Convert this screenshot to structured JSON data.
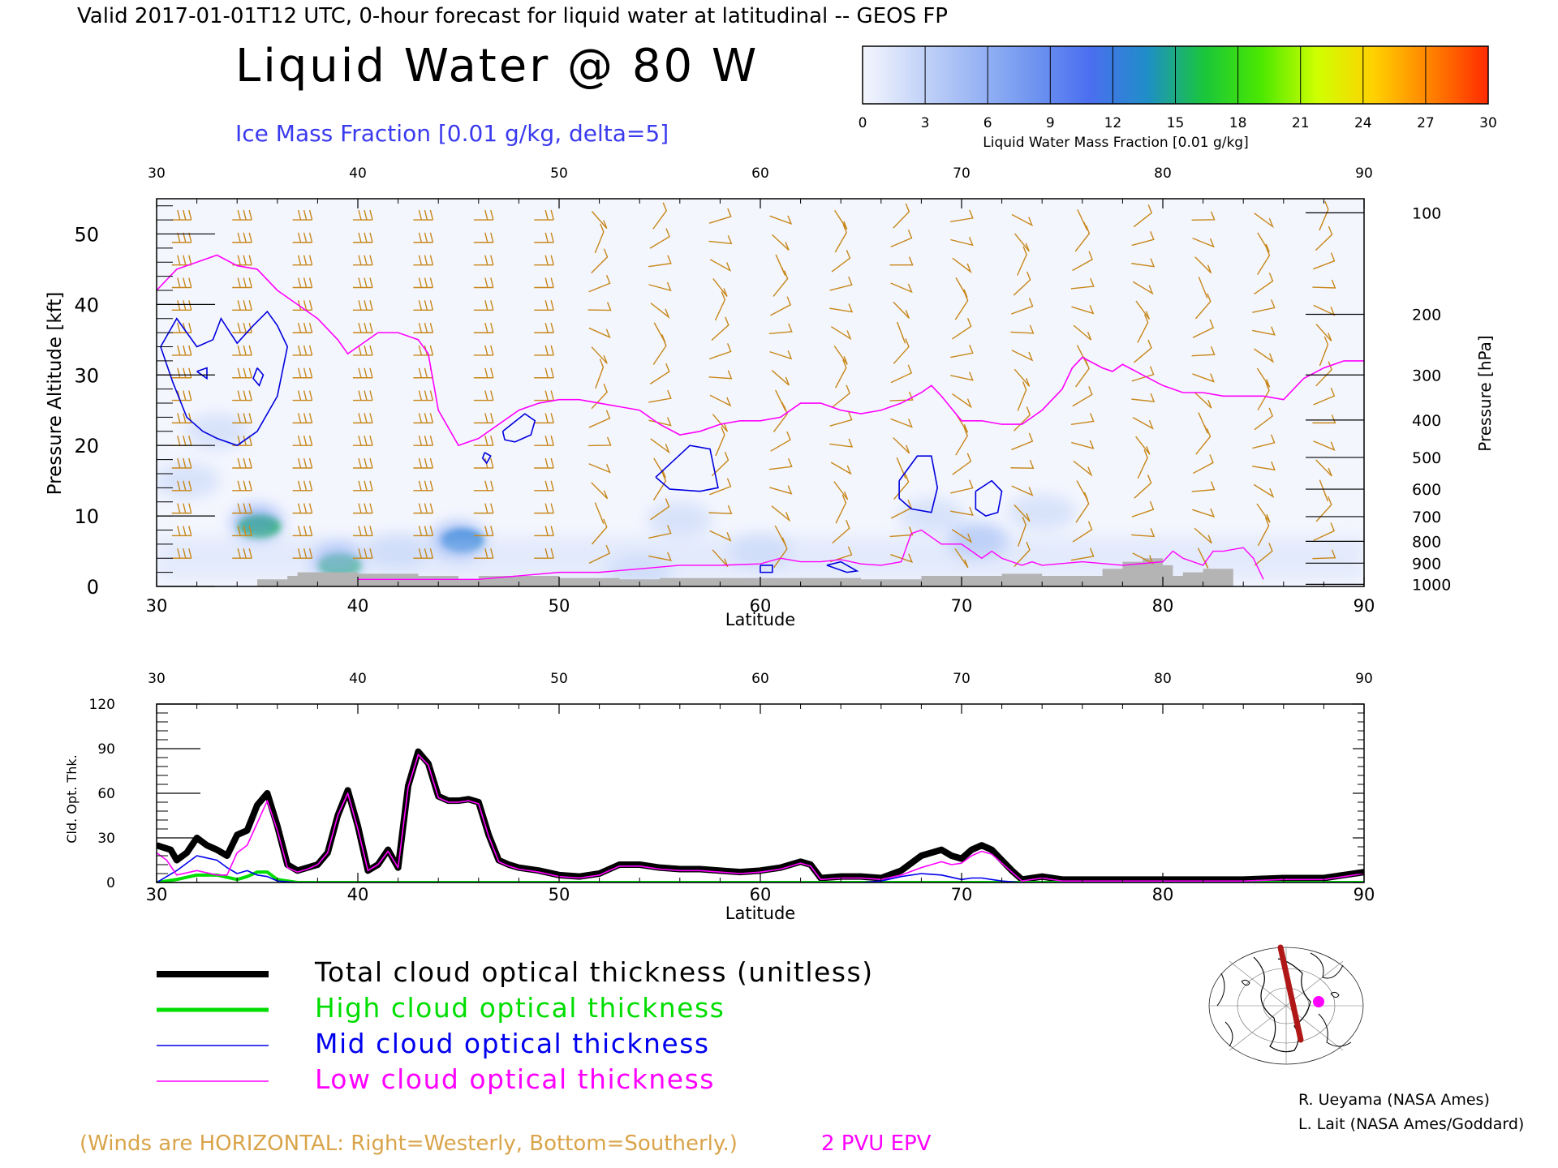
{
  "header": {
    "valid_line": "Valid 2017-01-01T12 UTC, 0-hour forecast for liquid water at latitudinal -- GEOS FP",
    "title": "Liquid Water @ 80 W",
    "subtitle": "Ice Mass Fraction [0.01 g/kg, delta=5]"
  },
  "colorbar": {
    "ticks": [
      "0",
      "3",
      "6",
      "9",
      "12",
      "15",
      "18",
      "21",
      "24",
      "27",
      "30"
    ],
    "label": "Liquid Water Mass Fraction [0.01 g/kg]",
    "colors": [
      "#f4f6fe",
      "#c5d5f8",
      "#99b5f4",
      "#6f95f0",
      "#4b6ef0",
      "#1f8ec8",
      "#19c63c",
      "#4ae800",
      "#d0ff00",
      "#ffd000",
      "#ff8000",
      "#ff2a00"
    ]
  },
  "colors": {
    "wind": "#c78719",
    "epv": "#ff00ff",
    "ice_contour": "#0000dd",
    "total": "#000000",
    "high": "#00dd00",
    "mid": "#0000ee",
    "low": "#ff00ff",
    "terrain": "#b4b4b4"
  },
  "chart_data": [
    {
      "type": "heatmap",
      "title": "Liquid Water @ 80 W",
      "xlabel": "Latitude",
      "ylabel": "Pressure Altitude [kft]",
      "ylabel_right": "Pressure [hPa]",
      "xlim": [
        30,
        90
      ],
      "ylim": [
        0,
        55
      ],
      "x_ticks": [
        "30",
        "40",
        "50",
        "60",
        "70",
        "80",
        "90"
      ],
      "y_ticks": [
        "0",
        "10",
        "20",
        "30",
        "40",
        "50"
      ],
      "pressure_ticks": [
        {
          "label": "100",
          "kft": 53.0
        },
        {
          "label": "200",
          "kft": 38.6
        },
        {
          "label": "300",
          "kft": 30.0
        },
        {
          "label": "400",
          "kft": 23.6
        },
        {
          "label": "500",
          "kft": 18.3
        },
        {
          "label": "600",
          "kft": 13.8
        },
        {
          "label": "700",
          "kft": 9.9
        },
        {
          "label": "800",
          "kft": 6.4
        },
        {
          "label": "900",
          "kft": 3.3
        },
        {
          "label": "1000",
          "kft": 0.3
        }
      ],
      "liquid_water_blobs": [
        {
          "lat": 35.1,
          "kft": 8.5,
          "level": 16
        },
        {
          "lat": 35.0,
          "kft": 9.0,
          "level": 9
        },
        {
          "lat": 39.1,
          "kft": 3.0,
          "level": 15
        },
        {
          "lat": 39.0,
          "kft": 3.5,
          "level": 9
        },
        {
          "lat": 45.2,
          "kft": 6.5,
          "level": 14
        },
        {
          "lat": 45.0,
          "kft": 6.5,
          "level": 8
        },
        {
          "lat": 42.0,
          "kft": 5.0,
          "level": 4
        },
        {
          "lat": 33.0,
          "kft": 22.0,
          "level": 4
        },
        {
          "lat": 31.5,
          "kft": 15.0,
          "level": 3
        },
        {
          "lat": 56.0,
          "kft": 9.5,
          "level": 3
        },
        {
          "lat": 60.0,
          "kft": 5.0,
          "level": 4
        },
        {
          "lat": 68.5,
          "kft": 10.0,
          "level": 3
        },
        {
          "lat": 70.8,
          "kft": 6.5,
          "level": 5
        },
        {
          "lat": 74.0,
          "kft": 10.5,
          "level": 2
        },
        {
          "lat": 54.0,
          "kft": 2.0,
          "level": 3
        }
      ],
      "ice_contours": [
        {
          "lat": [
            30.2,
            31.0,
            32.0,
            32.8,
            33.2,
            34.0,
            34.8,
            35.5,
            36.0,
            36.5,
            36.0,
            35.0,
            34.0,
            33.0,
            32.3,
            31.5,
            30.8,
            30.2
          ],
          "kft": [
            34.0,
            38.0,
            34.0,
            35.0,
            38.0,
            34.5,
            37.0,
            39.0,
            37.0,
            34.0,
            27.0,
            22.0,
            20.0,
            21.0,
            22.0,
            24.0,
            29.0,
            34.0
          ]
        },
        {
          "lat": [
            32.0,
            32.5,
            32.5,
            32.0
          ],
          "kft": [
            30.5,
            31.0,
            29.5,
            30.5
          ]
        },
        {
          "lat": [
            35.0,
            35.3,
            35.1,
            34.8,
            35.0
          ],
          "kft": [
            31.0,
            30.0,
            28.5,
            29.5,
            31.0
          ]
        },
        {
          "lat": [
            47.2,
            48.3,
            48.8,
            48.6,
            47.8,
            47.3,
            47.2
          ],
          "kft": [
            22.0,
            24.5,
            23.5,
            21.5,
            20.5,
            20.8,
            22.0
          ]
        },
        {
          "lat": [
            46.3,
            46.6,
            46.4,
            46.2,
            46.3
          ],
          "kft": [
            19.0,
            18.5,
            17.5,
            18.2,
            19.0
          ]
        },
        {
          "lat": [
            54.8,
            56.5,
            57.5,
            57.9,
            57.0,
            55.5,
            54.8
          ],
          "kft": [
            15.5,
            20.0,
            19.5,
            14.0,
            13.5,
            13.8,
            15.5
          ]
        },
        {
          "lat": [
            66.9,
            67.8,
            68.5,
            68.8,
            68.5,
            67.5,
            66.9,
            66.9
          ],
          "kft": [
            15.0,
            18.5,
            18.5,
            14.0,
            10.5,
            11.0,
            12.5,
            15.0
          ]
        },
        {
          "lat": [
            70.7,
            71.5,
            72.0,
            71.8,
            71.2,
            70.7,
            70.7
          ],
          "kft": [
            13.5,
            15.0,
            13.5,
            10.5,
            10.0,
            11.0,
            13.5
          ]
        },
        {
          "lat": [
            60.0,
            60.6,
            60.6,
            60.0,
            60.0
          ],
          "kft": [
            3.0,
            3.0,
            2.0,
            2.0,
            3.0
          ]
        },
        {
          "lat": [
            63.3,
            64.0,
            64.8,
            64.3,
            63.3
          ],
          "kft": [
            3.0,
            3.5,
            2.2,
            2.0,
            3.0
          ]
        }
      ],
      "epv_2pvu": {
        "lat": [
          30.0,
          31.0,
          32.0,
          33.0,
          34.0,
          35.0,
          36.0,
          37.0,
          38.0,
          39.0,
          39.5,
          40.0,
          41.0,
          42.0,
          43.0,
          43.5,
          44.0,
          45.0,
          46.0,
          47.0,
          48.0,
          49.0,
          50.0,
          51.0,
          52.0,
          53.0,
          54.0,
          55.0,
          56.0,
          57.0,
          58.0,
          59.0,
          60.0,
          61.0,
          62.0,
          63.0,
          64.0,
          65.0,
          66.0,
          67.0,
          68.0,
          68.5,
          69.0,
          70.0,
          71.0,
          72.0,
          73.0,
          74.0,
          75.0,
          75.5,
          76.0,
          77.0,
          77.5,
          78.0,
          79.0,
          80.0,
          81.0,
          82.0,
          83.0,
          84.0,
          85.0,
          86.0,
          87.0,
          88.0,
          89.0,
          90.0
        ],
        "kft": [
          42.0,
          45.0,
          46.0,
          47.0,
          45.5,
          45.0,
          42.0,
          40.0,
          38.0,
          35.0,
          33.0,
          34.0,
          36.0,
          36.0,
          35.0,
          33.0,
          25.0,
          20.0,
          21.0,
          23.0,
          25.0,
          26.0,
          26.5,
          26.5,
          26.0,
          25.5,
          25.0,
          23.0,
          21.5,
          22.0,
          23.0,
          23.5,
          23.5,
          24.0,
          26.0,
          26.0,
          25.0,
          24.5,
          25.0,
          26.0,
          27.5,
          28.5,
          27.0,
          23.5,
          23.5,
          23.0,
          23.0,
          25.0,
          28.0,
          31.0,
          32.5,
          31.0,
          30.5,
          31.5,
          30.0,
          28.5,
          27.5,
          27.5,
          27.0,
          27.0,
          27.0,
          26.5,
          29.5,
          31.0,
          32.0,
          32.0
        ]
      },
      "epv_low": {
        "lat": [
          40.0,
          42.0,
          44.0,
          46.0,
          48.0,
          50.0,
          52.0,
          54.0,
          56.0,
          58.0,
          60.0,
          61.0,
          62.0,
          63.0,
          64.0,
          65.0,
          66.0,
          67.0,
          67.5,
          68.0,
          69.0,
          70.0,
          71.0,
          71.5,
          72.0,
          73.0,
          73.5,
          74.0,
          76.0,
          78.0,
          80.0,
          80.5,
          81.0,
          82.0,
          82.5,
          83.0,
          84.0,
          84.5,
          85.0
        ],
        "kft": [
          1.0,
          1.0,
          1.0,
          1.0,
          1.5,
          2.0,
          2.0,
          2.5,
          3.0,
          3.0,
          3.2,
          4.0,
          3.5,
          3.5,
          3.8,
          3.2,
          3.0,
          3.5,
          7.5,
          8.0,
          6.0,
          6.0,
          4.0,
          5.0,
          4.0,
          3.0,
          3.5,
          3.0,
          3.5,
          3.0,
          3.5,
          5.0,
          4.0,
          3.0,
          5.0,
          5.0,
          5.5,
          4.0,
          1.0
        ]
      },
      "terrain": {
        "lat": [
          35.0,
          36.5,
          37.0,
          38.0,
          40.0,
          43.0,
          45.0,
          46.0,
          48.0,
          50.0,
          53.0,
          55.0,
          57.0,
          60.0,
          62.0,
          65.0,
          68.0,
          70.0,
          72.0,
          74.0,
          76.0,
          77.0,
          78.0,
          79.0,
          80.0,
          80.5,
          81.0,
          82.0,
          83.0,
          83.5,
          90.0
        ],
        "kft": [
          1.0,
          1.5,
          2.0,
          2.0,
          1.8,
          1.5,
          1.0,
          1.5,
          1.5,
          1.2,
          1.0,
          1.2,
          1.2,
          1.2,
          1.2,
          1.0,
          1.5,
          1.5,
          1.8,
          1.5,
          1.5,
          2.5,
          3.5,
          4.0,
          3.0,
          1.5,
          2.0,
          2.5,
          2.5,
          0.0,
          0.0
        ]
      },
      "wind_columns_lat": [
        31.0,
        34.0,
        37.0,
        40.0,
        43.0,
        46.0,
        49.0,
        52.0,
        55.0,
        58.0,
        61.0,
        64.0,
        67.0,
        70.0,
        73.0,
        76.0,
        79.0,
        82.0,
        85.0,
        88.0
      ]
    },
    {
      "type": "line",
      "xlabel": "Latitude",
      "ylabel": "Cld. Opt. Thk.",
      "xlim": [
        30,
        90
      ],
      "ylim": [
        0,
        120
      ],
      "x_ticks": [
        "30",
        "40",
        "50",
        "60",
        "70",
        "80",
        "90"
      ],
      "y_ticks": [
        "0",
        "30",
        "60",
        "90",
        "120"
      ],
      "series": [
        {
          "name": "Total cloud optical thickness (unitless)",
          "x": [
            30.0,
            30.7,
            31.0,
            31.5,
            32.0,
            32.5,
            33.0,
            33.5,
            34.0,
            34.5,
            35.0,
            35.5,
            36.0,
            36.5,
            37.0,
            37.5,
            38.0,
            38.5,
            39.0,
            39.5,
            40.0,
            40.5,
            41.0,
            41.5,
            42.0,
            42.5,
            43.0,
            43.5,
            44.0,
            44.5,
            45.0,
            45.5,
            46.0,
            46.5,
            47.0,
            47.5,
            48.0,
            49.0,
            50.0,
            51.0,
            52.0,
            53.0,
            54.0,
            55.0,
            56.0,
            57.0,
            58.0,
            59.0,
            60.0,
            61.0,
            62.0,
            62.5,
            63.0,
            64.0,
            65.0,
            66.0,
            67.0,
            68.0,
            69.0,
            69.5,
            70.0,
            70.5,
            71.0,
            71.5,
            72.0,
            72.5,
            73.0,
            74.0,
            75.0,
            76.0,
            78.0,
            80.0,
            82.0,
            84.0,
            86.0,
            88.0,
            89.0,
            90.0
          ],
          "y": [
            25,
            22,
            15,
            20,
            30,
            25,
            22,
            18,
            32,
            35,
            52,
            60,
            38,
            12,
            8,
            10,
            12,
            20,
            45,
            62,
            38,
            8,
            12,
            22,
            10,
            65,
            88,
            80,
            58,
            55,
            55,
            56,
            54,
            32,
            15,
            12,
            10,
            8,
            5,
            4,
            6,
            12,
            12,
            10,
            9,
            9,
            8,
            7,
            8,
            10,
            14,
            12,
            3,
            4,
            4,
            3,
            8,
            18,
            22,
            18,
            16,
            22,
            25,
            22,
            15,
            8,
            2,
            4,
            2,
            2,
            2,
            2,
            2,
            2,
            3,
            3,
            5,
            7
          ]
        },
        {
          "name": "High cloud optical thickness",
          "x": [
            30.0,
            31.0,
            32.0,
            33.0,
            34.0,
            34.5,
            35.0,
            35.5,
            36.0,
            37.0,
            40.0,
            50.0,
            60.0,
            70.0,
            80.0,
            90.0
          ],
          "y": [
            0,
            2,
            5,
            5,
            2,
            4,
            7,
            7,
            2,
            0,
            0,
            0,
            0,
            0,
            0,
            0
          ]
        },
        {
          "name": "Mid cloud optical thickness",
          "x": [
            30.0,
            30.5,
            31.0,
            32.0,
            33.0,
            33.5,
            34.0,
            34.5,
            35.0,
            35.5,
            36.0,
            37.0,
            40.0,
            50.0,
            60.0,
            65.0,
            66.0,
            67.0,
            68.0,
            69.0,
            70.0,
            70.5,
            71.0,
            72.0,
            73.0,
            80.0,
            90.0
          ],
          "y": [
            0,
            4,
            8,
            18,
            15,
            10,
            6,
            8,
            5,
            4,
            1,
            0,
            0,
            0,
            0,
            0,
            1,
            4,
            6,
            5,
            2,
            3,
            3,
            1,
            0,
            0,
            0
          ]
        },
        {
          "name": "Low cloud optical thickness",
          "x": [
            30.0,
            30.5,
            31.0,
            32.0,
            33.0,
            33.5,
            34.0,
            34.5,
            35.0,
            35.5,
            36.0,
            36.5,
            37.0,
            37.5,
            38.0,
            38.5,
            39.0,
            39.5,
            40.0,
            40.5,
            41.0,
            41.5,
            42.0,
            42.5,
            43.0,
            43.5,
            44.0,
            44.5,
            45.0,
            45.5,
            46.0,
            46.5,
            47.0,
            47.5,
            48.0,
            49.0,
            50.0,
            51.0,
            52.0,
            53.0,
            54.0,
            55.0,
            56.0,
            57.0,
            58.0,
            59.0,
            60.0,
            61.0,
            62.0,
            62.5,
            63.0,
            64.0,
            65.0,
            66.0,
            67.0,
            68.0,
            69.0,
            69.5,
            70.0,
            70.5,
            71.0,
            71.5,
            72.0,
            72.5,
            73.0,
            74.0,
            75.0,
            76.0,
            78.0,
            80.0,
            82.0,
            84.0,
            86.0,
            88.0,
            89.0,
            90.0
          ],
          "y": [
            20,
            15,
            5,
            8,
            5,
            5,
            20,
            25,
            40,
            55,
            35,
            10,
            7,
            9,
            12,
            20,
            45,
            60,
            36,
            8,
            12,
            21,
            10,
            64,
            86,
            79,
            57,
            54,
            54,
            55,
            53,
            31,
            14,
            11,
            9,
            7,
            4,
            3,
            5,
            11,
            11,
            9,
            8,
            8,
            7,
            6,
            7,
            9,
            13,
            11,
            2,
            3,
            3,
            2,
            5,
            10,
            14,
            12,
            13,
            18,
            21,
            19,
            13,
            7,
            1,
            3,
            1,
            1,
            1,
            1,
            1,
            1,
            2,
            2,
            4,
            6
          ]
        }
      ]
    }
  ],
  "legend": {
    "items": [
      {
        "label": "Total cloud optical thickness (unitless)",
        "color": "#000000"
      },
      {
        "label": "High cloud optical thickness",
        "color": "#00dd00"
      },
      {
        "label": "Mid cloud optical thickness",
        "color": "#0000ee"
      },
      {
        "label": "Low cloud optical thickness",
        "color": "#ff00ff"
      }
    ]
  },
  "footer": {
    "winds_note": "(Winds are HORIZONTAL: Right=Westerly, Bottom=Southerly.)",
    "epv_label": "2 PVU EPV",
    "credit_1": "R. Ueyama (NASA Ames)",
    "credit_2": "L. Lait (NASA Ames/Goddard)"
  }
}
